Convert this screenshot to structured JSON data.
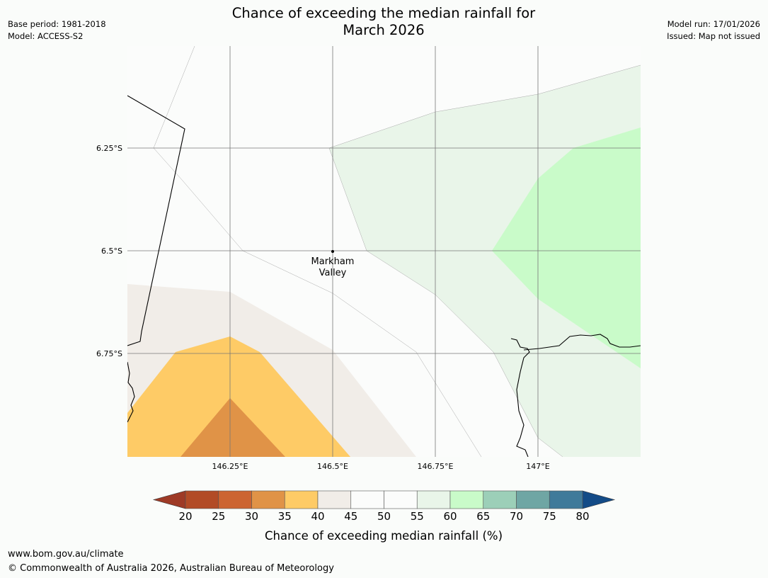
{
  "header": {
    "title_line1": "Chance of exceeding the median rainfall for",
    "title_line2": "March 2026",
    "base_period": "Base period: 1981-2018",
    "model": "Model: ACCESS-S2",
    "model_run": "Model run: 17/01/2026",
    "issued": "Issued: Map not issued"
  },
  "map": {
    "lon_ticks": [
      "146.25°E",
      "146.5°E",
      "146.75°E",
      "147°E"
    ],
    "lat_ticks": [
      "6.25°S",
      "6.5°S",
      "6.75°S"
    ],
    "place": {
      "name_line1": "Markham",
      "name_line2": "Valley",
      "lon": 146.5,
      "lat": -6.5
    },
    "extent": {
      "lon_min": 146.0,
      "lon_max": 147.25,
      "lat_min": -7.0,
      "lat_max": -6.0
    }
  },
  "colorbar": {
    "label": "Chance of exceeding median rainfall (%)",
    "ticks": [
      "20",
      "25",
      "30",
      "35",
      "40",
      "45",
      "50",
      "55",
      "60",
      "65",
      "70",
      "75",
      "80"
    ],
    "under_color": "#9e3a26",
    "over_color": "#134b87",
    "colors": [
      "#b24b26",
      "#cc6431",
      "#e09347",
      "#fecb66",
      "#f1ede8",
      "#fbfcfb",
      "#fbfcfb",
      "#e9f5e9",
      "#c9fbc9",
      "#9ccfb8",
      "#6fa6a4",
      "#3f7a9a"
    ]
  },
  "footer": {
    "url": "www.bom.gov.au/climate",
    "copyright": "© Commonwealth of Australia 2026, Australian Bureau of Meteorology"
  }
}
